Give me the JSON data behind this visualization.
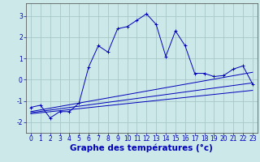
{
  "background_color": "#cce8e8",
  "grid_color": "#a8c8c8",
  "line_color": "#0000bb",
  "xlabel": "Graphe des températures (°c)",
  "xlabel_fontsize": 7.5,
  "xlim": [
    -0.5,
    23.5
  ],
  "ylim": [
    -2.5,
    3.6
  ],
  "yticks": [
    -2,
    -1,
    0,
    1,
    2,
    3
  ],
  "xticks": [
    0,
    1,
    2,
    3,
    4,
    5,
    6,
    7,
    8,
    9,
    10,
    11,
    12,
    13,
    14,
    15,
    16,
    17,
    18,
    19,
    20,
    21,
    22,
    23
  ],
  "xtick_labels": [
    "0",
    "1",
    "2",
    "3",
    "4",
    "5",
    "6",
    "7",
    "8",
    "9",
    "10",
    "11",
    "12",
    "13",
    "14",
    "15",
    "16",
    "17",
    "18",
    "19",
    "20",
    "21",
    "22",
    "23"
  ],
  "main_line_x": [
    0,
    1,
    2,
    3,
    4,
    5,
    6,
    7,
    8,
    9,
    10,
    11,
    12,
    13,
    14,
    15,
    16,
    17,
    18,
    19,
    20,
    21,
    22,
    23
  ],
  "main_line_y": [
    -1.3,
    -1.2,
    -1.8,
    -1.5,
    -1.5,
    -1.1,
    0.6,
    1.6,
    1.3,
    2.4,
    2.5,
    2.8,
    3.1,
    2.6,
    1.1,
    2.3,
    1.6,
    0.3,
    0.3,
    0.15,
    0.2,
    0.5,
    0.65,
    -0.2
  ],
  "line1_x": [
    0,
    23
  ],
  "line1_y": [
    -1.5,
    0.35
  ],
  "line2_x": [
    0,
    23
  ],
  "line2_y": [
    -1.55,
    -0.15
  ],
  "line3_x": [
    0,
    23
  ],
  "line3_y": [
    -1.6,
    -0.5
  ],
  "marker_size": 2.5,
  "tick_fontsize": 5.5,
  "linewidth": 0.7
}
